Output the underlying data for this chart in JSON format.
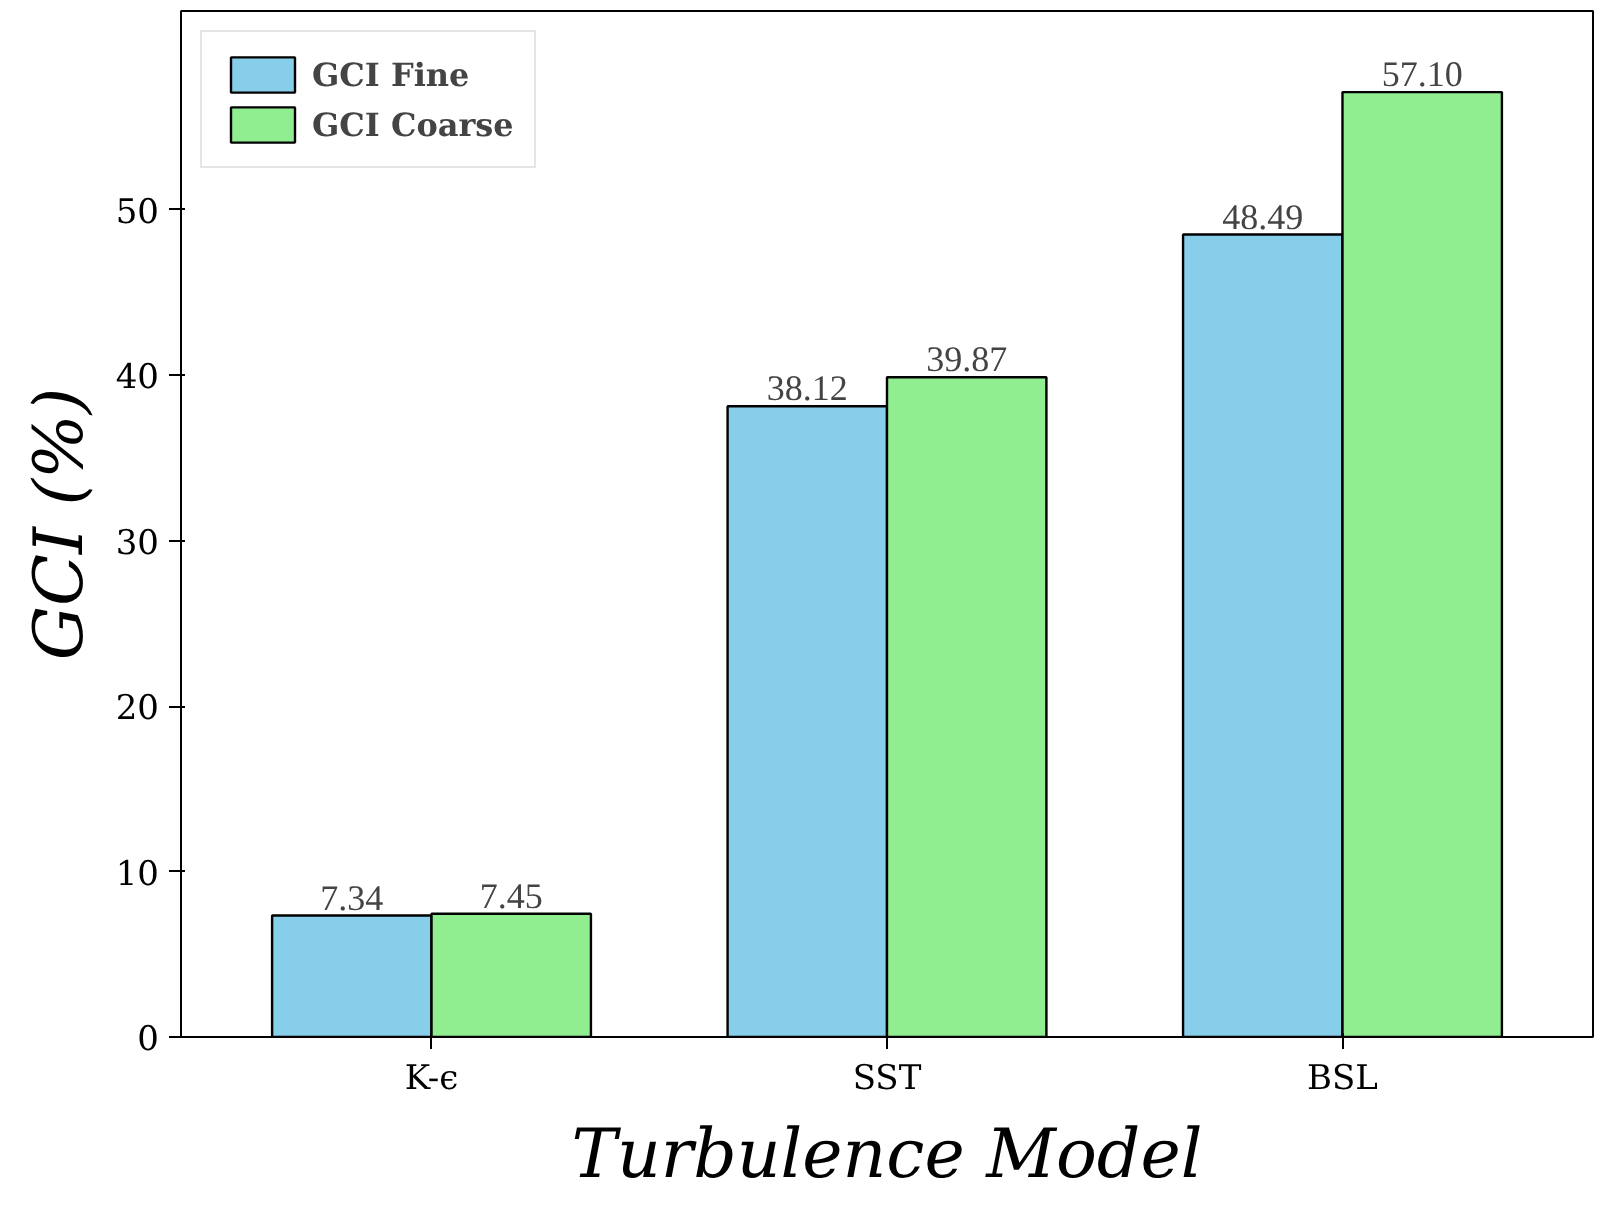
{
  "chart_data": {
    "type": "bar",
    "xlabel": "Turbulence Model",
    "ylabel": "GCI (%)",
    "categories": [
      "K-ϵ",
      "SST",
      "BSL"
    ],
    "series": [
      {
        "name": "GCI Fine",
        "color": "#87ceeb",
        "values": [
          7.34,
          38.12,
          48.49
        ]
      },
      {
        "name": "GCI Coarse",
        "color": "#90ee90",
        "values": [
          7.45,
          39.87,
          57.1
        ]
      }
    ],
    "value_labels": [
      [
        "7.34",
        "38.12",
        "48.49"
      ],
      [
        "7.45",
        "39.87",
        "57.10"
      ]
    ],
    "ylim": [
      0,
      62
    ],
    "yticks": [
      0,
      10,
      20,
      30,
      40,
      50
    ],
    "grid": false,
    "legend": "top left"
  }
}
